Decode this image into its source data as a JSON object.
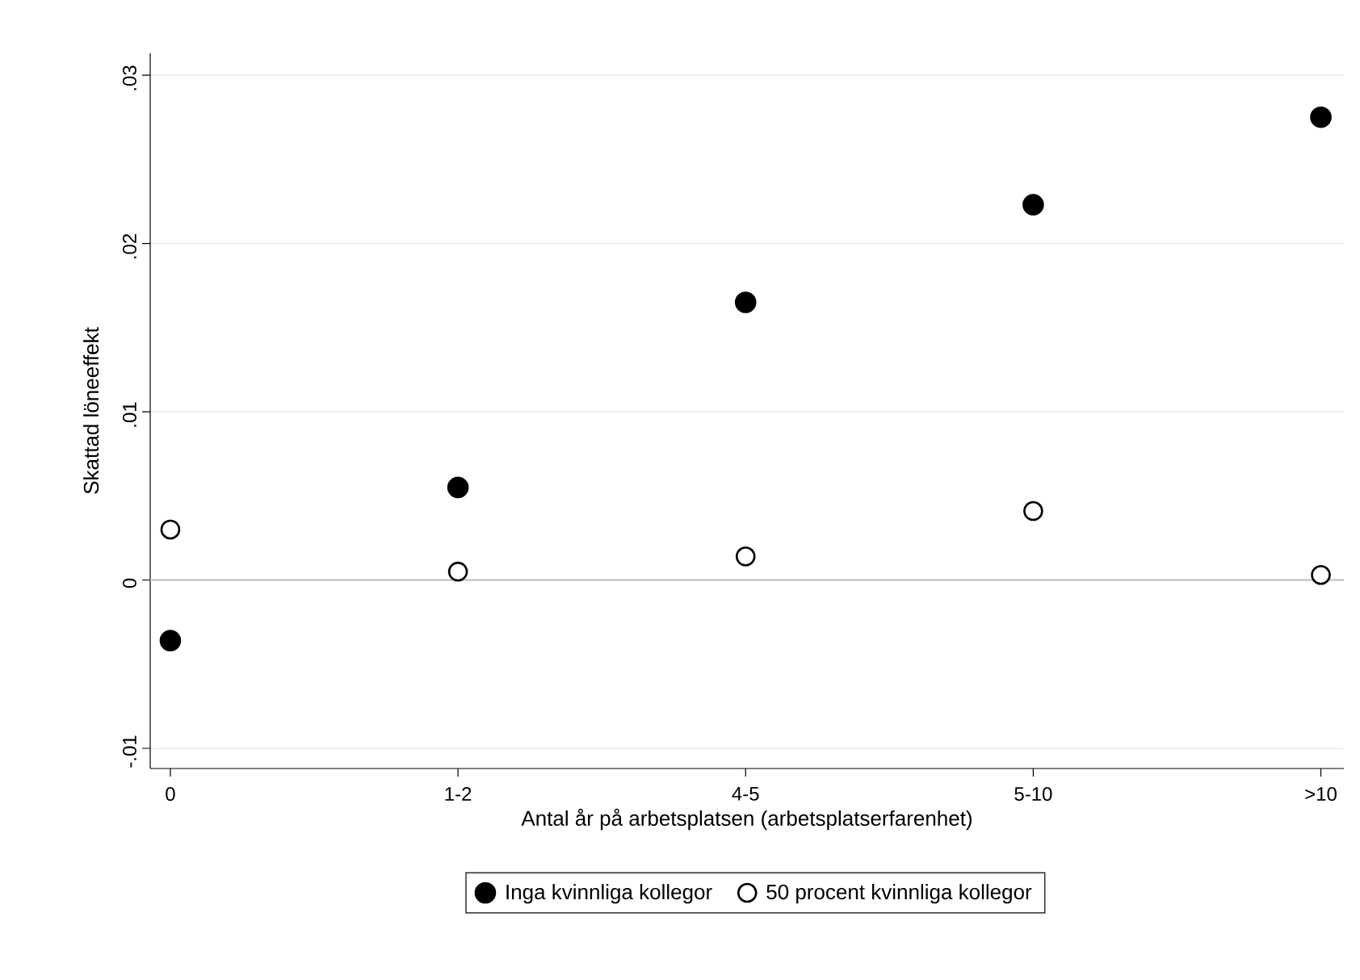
{
  "chart_data": {
    "type": "scatter",
    "xlabel": "Antal år på arbetsplatsen (arbetsplatserfarenhet)",
    "ylabel": "Skattad löneeffekt",
    "categories": [
      "0",
      "1-2",
      "4-5",
      "5-10",
      ">10"
    ],
    "series": [
      {
        "name": "Inga kvinnliga kollegor",
        "color": "#000000",
        "values": [
          -0.0036,
          0.0055,
          0.0165,
          0.0223,
          0.0275
        ]
      },
      {
        "name": "50 procent kvinnliga kollegor",
        "color": "#ffffff",
        "values": [
          0.003,
          0.0005,
          0.0014,
          0.0041,
          0.0003
        ]
      }
    ],
    "ylim": [
      -0.0112,
      0.0313
    ],
    "yticks": [
      {
        "value": -0.01,
        "label": "-.01"
      },
      0,
      {
        "value": 0.01,
        "label": ".01"
      },
      {
        "value": 0.02,
        "label": ".02"
      },
      {
        "value": 0.03,
        "label": ".03"
      }
    ],
    "grid": "y",
    "ref_lines": [
      {
        "axis": "y",
        "value": 0,
        "color": "#c8c8c8"
      }
    ],
    "legend": "bottom"
  }
}
